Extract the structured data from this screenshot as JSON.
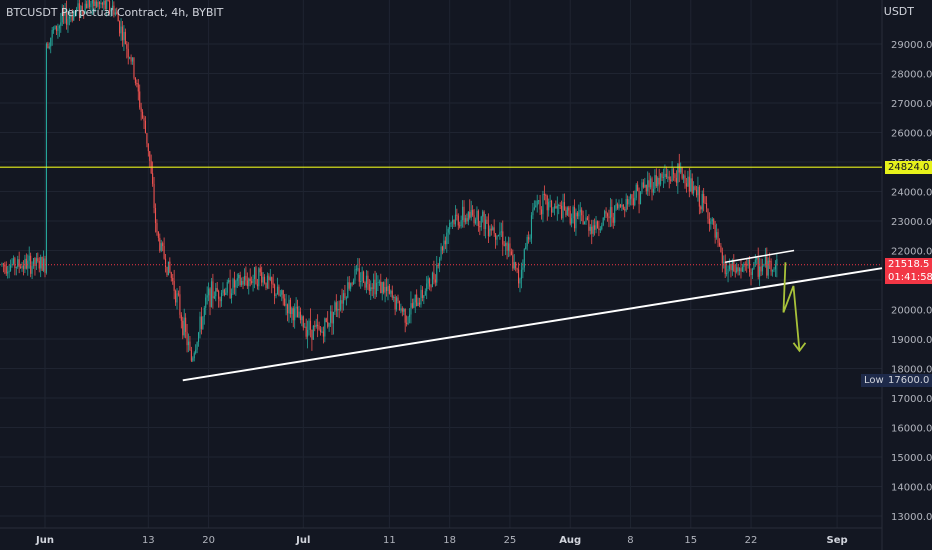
{
  "header": {
    "title": "BTCUSDT Perpetual Contract, 4h, BYBIT"
  },
  "axis": {
    "unit": "USDT"
  },
  "chart_data": {
    "type": "candlestick",
    "symbol": "BTCUSDT",
    "interval": "4h",
    "exchange": "BYBIT",
    "ylim": [
      12500,
      31000
    ],
    "y_ticks": [
      "13000.0",
      "14000.0",
      "15000.0",
      "16000.0",
      "17000.0",
      "18000.0",
      "19000.0",
      "20000.0",
      "21000.0",
      "22000.0",
      "23000.0",
      "24000.0",
      "25000.0",
      "26000.0",
      "27000.0",
      "28000.0",
      "29000.0"
    ],
    "x_ticks": [
      "Jun",
      "13",
      "20",
      "Jul",
      "11",
      "18",
      "25",
      "Aug",
      "8",
      "15",
      "22",
      "Sep"
    ],
    "price_path": [
      {
        "x": "Jun",
        "y": 29000
      },
      {
        "x": "Jun 3",
        "y": 29800
      },
      {
        "x": "Jun 6",
        "y": 30400
      },
      {
        "x": "Jun 9",
        "y": 30200
      },
      {
        "x": "Jun 11",
        "y": 28500
      },
      {
        "x": "Jun 13",
        "y": 25500
      },
      {
        "x": "Jun 14",
        "y": 22500
      },
      {
        "x": "Jun 16",
        "y": 20800
      },
      {
        "x": "Jun 18",
        "y": 18300
      },
      {
        "x": "Jun 20",
        "y": 20500
      },
      {
        "x": "Jun 23",
        "y": 20800
      },
      {
        "x": "Jun 26",
        "y": 21200
      },
      {
        "x": "Jul",
        "y": 19500
      },
      {
        "x": "Jul 3",
        "y": 19200
      },
      {
        "x": "Jul 7",
        "y": 21200
      },
      {
        "x": "Jul 10",
        "y": 20800
      },
      {
        "x": "Jul 13",
        "y": 19800
      },
      {
        "x": "Jul 16",
        "y": 21000
      },
      {
        "x": "Jul 18",
        "y": 23000
      },
      {
        "x": "Jul 21",
        "y": 23200
      },
      {
        "x": "Jul 24",
        "y": 22600
      },
      {
        "x": "Jul 26",
        "y": 21000
      },
      {
        "x": "Jul 28",
        "y": 23700
      },
      {
        "x": "Aug",
        "y": 23200
      },
      {
        "x": "Aug 4",
        "y": 22800
      },
      {
        "x": "Aug 8",
        "y": 23800
      },
      {
        "x": "Aug 11",
        "y": 24400
      },
      {
        "x": "Aug 14",
        "y": 24600
      },
      {
        "x": "Aug 17",
        "y": 23300
      },
      {
        "x": "Aug 19",
        "y": 21300
      },
      {
        "x": "Aug 22",
        "y": 21400
      },
      {
        "x": "Aug 25",
        "y": 21518.5
      }
    ],
    "annotations": {
      "resistance_level": {
        "value": 24824.0,
        "label": "24824.0",
        "color": "#e7f21b"
      },
      "current_price": {
        "value": 21518.5,
        "label": "21518.5",
        "countdown": "01:41:58",
        "color": "#f23645"
      },
      "low": {
        "value": 17600.0,
        "label": "17600.0",
        "name": "Low"
      },
      "support_trendline": {
        "start": {
          "x": "Jun 17",
          "y": 17600
        },
        "end": {
          "x": "Sep",
          "y": 21400
        },
        "color": "#ffffff"
      },
      "upper_channel": {
        "start": {
          "x": "Aug 19",
          "y": 21600
        },
        "end": {
          "x": "Aug 27",
          "y": 22000
        },
        "color": "#ffffff"
      },
      "projection_arrow": {
        "color": "#a8c23a",
        "target_y": 18600
      }
    },
    "colors": {
      "up": "#26a69a",
      "down": "#ef5350",
      "background": "#131722",
      "grid": "#1f2431"
    },
    "grid": true
  }
}
